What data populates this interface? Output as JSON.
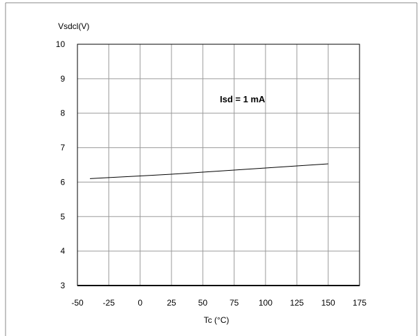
{
  "chart_data": {
    "type": "line",
    "title": "",
    "xlabel": "Tc (°C)",
    "ylabel": "Vsdcl(V)",
    "xlim": [
      -50,
      175
    ],
    "ylim": [
      3,
      10
    ],
    "x_ticks": [
      -50,
      -25,
      0,
      25,
      50,
      75,
      100,
      125,
      150,
      175
    ],
    "y_ticks": [
      3,
      4,
      5,
      6,
      7,
      8,
      9,
      10
    ],
    "grid": true,
    "annotation": "Isd = 1 mA",
    "series": [
      {
        "x": [
          -40,
          -25,
          0,
          25,
          50,
          75,
          100,
          125,
          150
        ],
        "y": [
          6.1,
          6.13,
          6.18,
          6.23,
          6.29,
          6.35,
          6.41,
          6.47,
          6.53
        ]
      }
    ]
  }
}
